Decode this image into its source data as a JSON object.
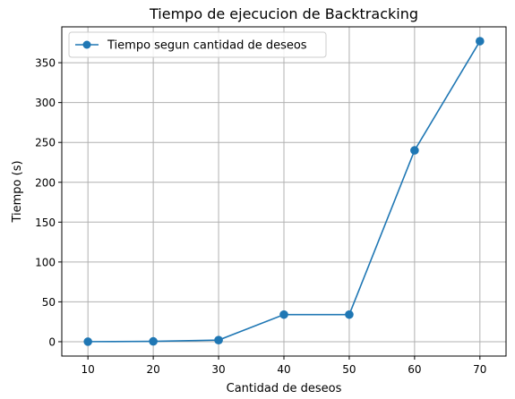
{
  "chart_data": {
    "type": "line",
    "title": "Tiempo de ejecucion de Backtracking",
    "xlabel": "Cantidad de deseos",
    "ylabel": "Tiempo (s)",
    "xlim": [
      6,
      74
    ],
    "ylim": [
      -18,
      395
    ],
    "xticks": [
      10,
      20,
      30,
      40,
      50,
      60,
      70
    ],
    "yticks": [
      0,
      50,
      100,
      150,
      200,
      250,
      300,
      350
    ],
    "grid": true,
    "legend_position": "top-left",
    "series": [
      {
        "name": "Tiempo segun cantidad de deseos",
        "color": "#1f77b4",
        "marker": "circle",
        "x": [
          10,
          20,
          30,
          40,
          50,
          60,
          70
        ],
        "y": [
          0.1,
          0.4,
          2,
          34,
          34,
          240,
          377
        ]
      }
    ]
  }
}
